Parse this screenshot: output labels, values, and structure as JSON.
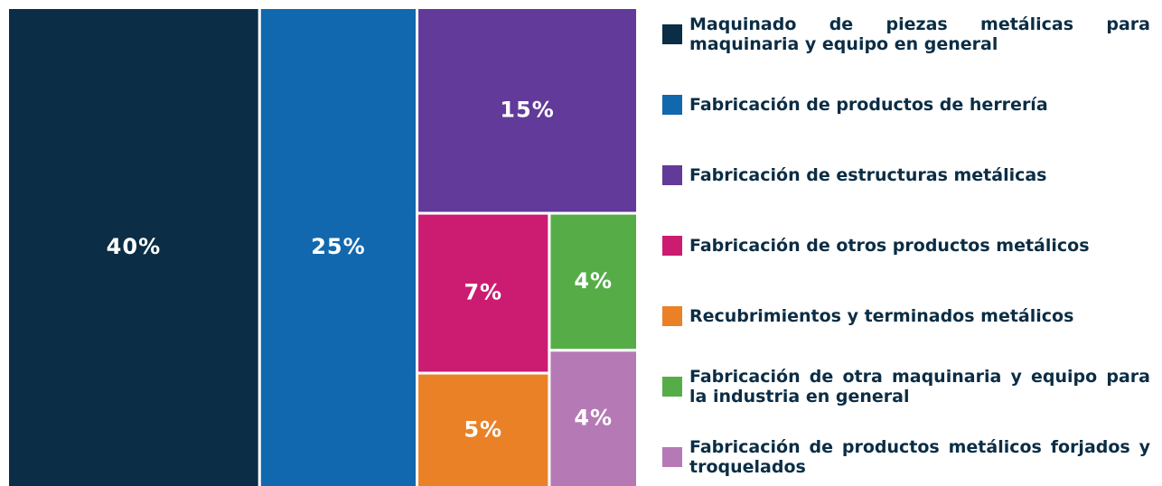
{
  "chart_data": {
    "type": "treemap",
    "categories": [
      "Maquinado de piezas metálicas para maquinaria y equipo en general",
      "Fabricación de productos de herrería",
      "Fabricación de estructuras metálicas",
      "Fabricación de otros productos metálicos",
      "Recubrimientos y terminados metálicos",
      "Fabricación de otra maquinaria y equipo para la industria en general",
      "Fabricación de productos metálicos forjados y troquelados"
    ],
    "values": [
      40,
      25,
      15,
      7,
      5,
      4,
      4
    ],
    "value_labels": [
      "40%",
      "25%",
      "15%",
      "7%",
      "5%",
      "4%",
      "4%"
    ],
    "colors": [
      "#0b2d45",
      "#1168ae",
      "#613a9a",
      "#cc1c72",
      "#ea8126",
      "#56ad48",
      "#b57ab5"
    ],
    "legend": "right"
  }
}
